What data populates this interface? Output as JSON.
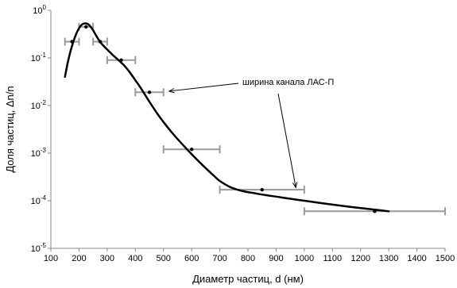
{
  "chart_data": {
    "type": "scatter",
    "title": "",
    "xlabel": "Диаметр частиц, d (нм)",
    "ylabel": "Доля частиц, Δn/n",
    "x_scale": "linear",
    "y_scale": "log",
    "xlim": [
      100,
      1500
    ],
    "ylim": [
      1e-05,
      1
    ],
    "x_ticks": [
      100,
      200,
      300,
      400,
      500,
      600,
      700,
      800,
      900,
      1000,
      1100,
      1200,
      1300,
      1400,
      1500
    ],
    "x_tick_labels": [
      "100",
      "200",
      "300",
      "400",
      "500",
      "600",
      "700",
      "800",
      "900",
      "1000",
      "1100",
      "1200",
      "1300",
      "1400",
      "1500"
    ],
    "y_ticks": [
      1e-05,
      0.0001,
      0.001,
      0.01,
      0.1,
      1
    ],
    "y_tick_labels": [
      {
        "base": "10",
        "exp": "-5"
      },
      {
        "base": "10",
        "exp": "-4"
      },
      {
        "base": "10",
        "exp": "-3"
      },
      {
        "base": "10",
        "exp": "-2"
      },
      {
        "base": "10",
        "exp": "-1"
      },
      {
        "base": "10",
        "exp": "0"
      }
    ],
    "grid": false,
    "points": [
      {
        "x": 175,
        "y": 0.22,
        "x_err": [
          150,
          200
        ]
      },
      {
        "x": 225,
        "y": 0.45,
        "x_err": [
          200,
          250
        ]
      },
      {
        "x": 275,
        "y": 0.22,
        "x_err": [
          250,
          300
        ]
      },
      {
        "x": 350,
        "y": 0.09,
        "x_err": [
          300,
          400
        ]
      },
      {
        "x": 450,
        "y": 0.019,
        "x_err": [
          400,
          500
        ]
      },
      {
        "x": 600,
        "y": 0.0012,
        "x_err": [
          500,
          700
        ]
      },
      {
        "x": 850,
        "y": 0.00017,
        "x_err": [
          700,
          1000
        ]
      },
      {
        "x": 1250,
        "y": 6e-05,
        "x_err": [
          1000,
          1500
        ]
      }
    ],
    "curve": {
      "x": [
        150,
        160,
        170,
        180,
        190,
        200,
        210,
        220,
        230,
        240,
        250,
        260,
        270,
        280,
        300,
        320,
        340,
        360,
        380,
        400,
        420,
        450,
        480,
        500,
        530,
        560,
        600,
        640,
        680,
        700,
        740,
        780,
        820,
        860,
        900,
        950,
        1000,
        1050,
        1100,
        1150,
        1200,
        1250,
        1300
      ],
      "y": [
        0.04,
        0.08,
        0.14,
        0.22,
        0.32,
        0.42,
        0.5,
        0.53,
        0.52,
        0.46,
        0.38,
        0.3,
        0.24,
        0.2,
        0.15,
        0.115,
        0.09,
        0.07,
        0.05,
        0.034,
        0.023,
        0.012,
        0.0065,
        0.0045,
        0.0027,
        0.0017,
        0.00095,
        0.00055,
        0.00033,
        0.00026,
        0.00019,
        0.00016,
        0.000145,
        0.000132,
        0.000122,
        0.00011,
        0.0001,
        9.1e-05,
        8.3e-05,
        7.6e-05,
        7e-05,
        6.5e-05,
        6e-05
      ]
    },
    "annotation": {
      "text": "ширина канала ЛАС-П",
      "arrows_to": [
        {
          "x": 520,
          "y": 0.02
        },
        {
          "x": 970,
          "y": 0.00019
        }
      ]
    }
  }
}
